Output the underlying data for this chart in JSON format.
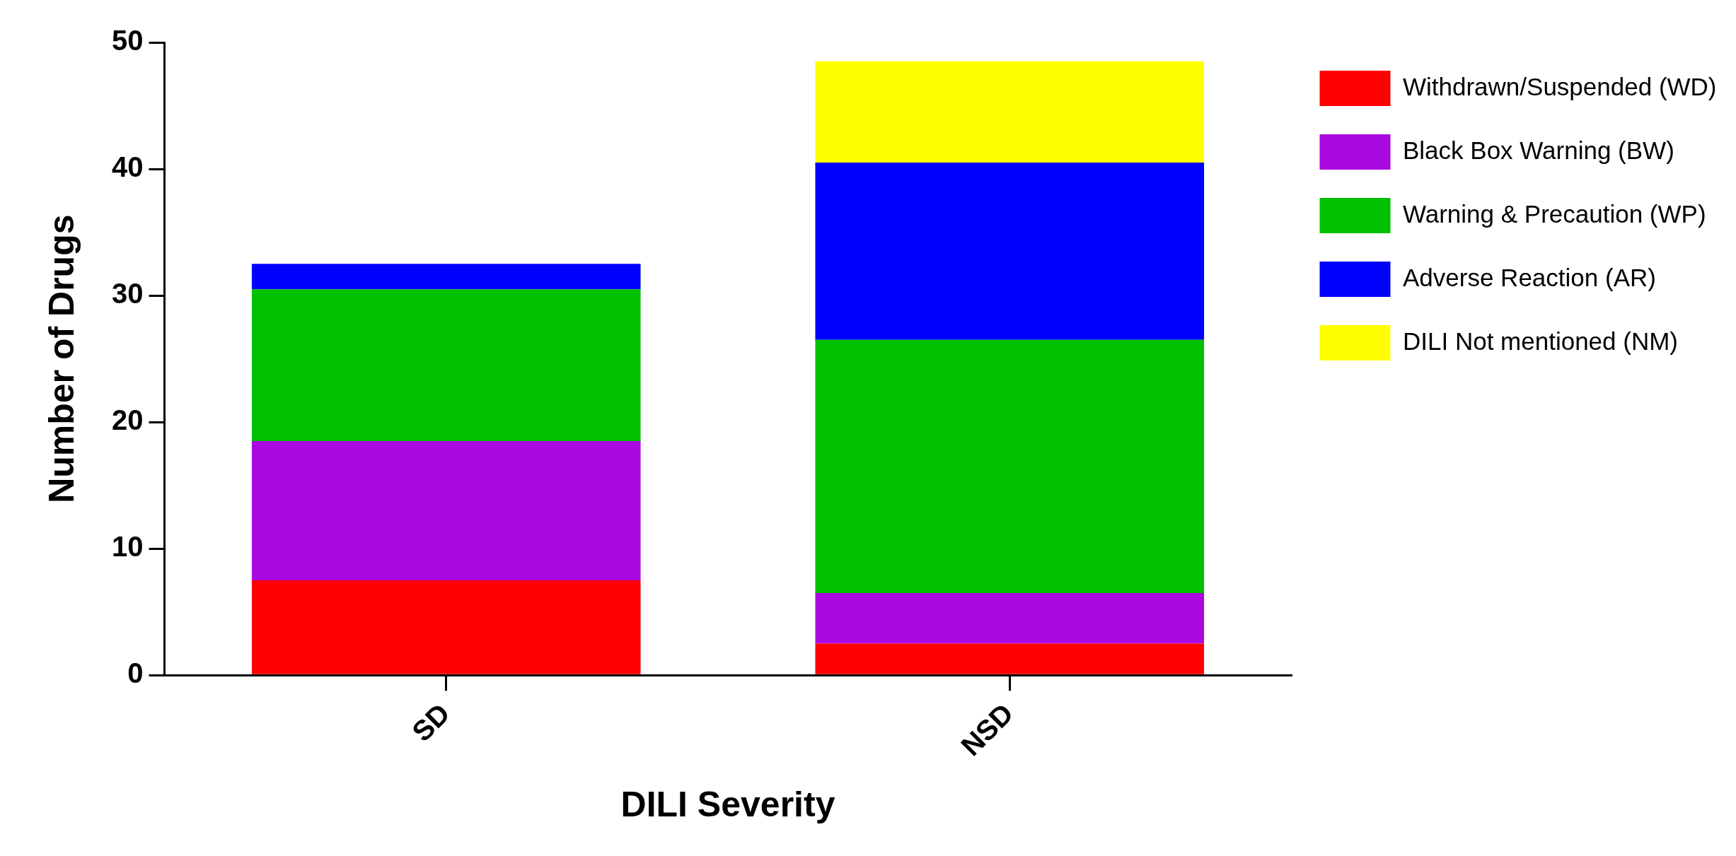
{
  "chart_data": {
    "type": "bar",
    "stacked": true,
    "xlabel": "DILI Severity",
    "ylabel": "Number of Drugs",
    "categories": [
      "SD",
      "NSD"
    ],
    "series": [
      {
        "name": "Withdrawn/Suspended (WD)",
        "color": "#ff0000",
        "values": [
          7.5,
          2.5
        ]
      },
      {
        "name": "Black Box Warning (BW)",
        "color": "#aa08e0",
        "values": [
          11,
          4
        ]
      },
      {
        "name": "Warning & Precaution (WP)",
        "color": "#00c000",
        "values": [
          12,
          20
        ]
      },
      {
        "name": "Adverse Reaction (AR)",
        "color": "#0000ff",
        "values": [
          2,
          14
        ]
      },
      {
        "name": "DILI Not mentioned (NM)",
        "color": "#ffff00",
        "values": [
          null,
          8
        ]
      }
    ],
    "ylim": [
      0,
      50
    ],
    "yticks": [
      0,
      10,
      20,
      30,
      40,
      50
    ],
    "grid": false,
    "legend": "top right"
  }
}
